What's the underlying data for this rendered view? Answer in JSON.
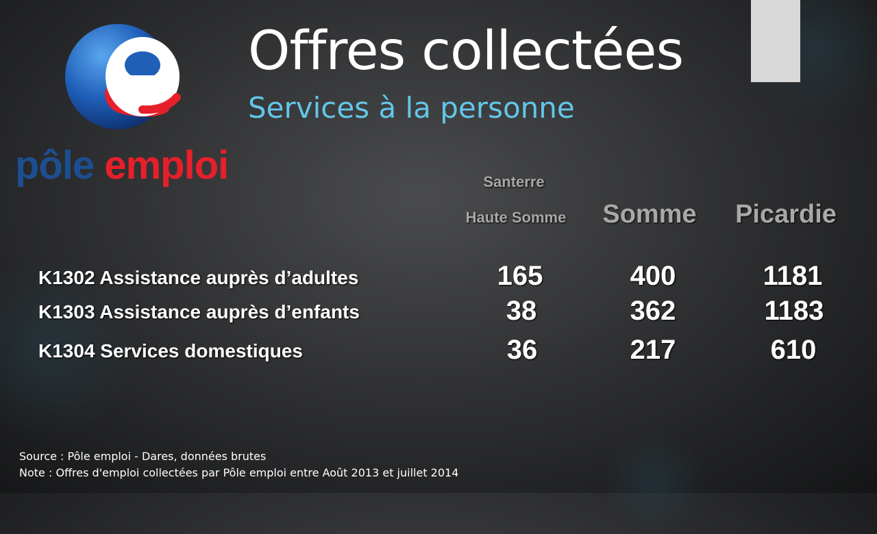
{
  "title": "Offres collectées",
  "subtitle": "Services à la personne",
  "logo": {
    "mark_letter": "e",
    "word_part1": "pôle",
    "word_part2": " emploi",
    "colors": {
      "blue": "#1d4e8f",
      "red": "#e6202b"
    }
  },
  "columns": {
    "col1_line1": "Santerre",
    "col1_line2": "Haute Somme",
    "col2": "Somme",
    "col3": "Picardie"
  },
  "rows": [
    {
      "label": "K1302 Assistance auprès d’adultes",
      "values": [
        "165",
        "400",
        "1181"
      ]
    },
    {
      "label": "K1303 Assistance auprès d’enfants",
      "values": [
        "38",
        "362",
        "1183"
      ]
    },
    {
      "label": "K1304 Services domestiques",
      "values": [
        "36",
        "217",
        "610"
      ]
    }
  ],
  "footer": {
    "source": "Source : Pôle emploi - Dares, données brutes",
    "note": "Note : Offres d'emploi collectées par Pôle emploi entre Août 2013 et juillet 2014"
  },
  "colors": {
    "title": "#ffffff",
    "subtitle": "#63c6e8",
    "header": "#a8a8a8",
    "accent_bar": "#d9d9d9"
  }
}
